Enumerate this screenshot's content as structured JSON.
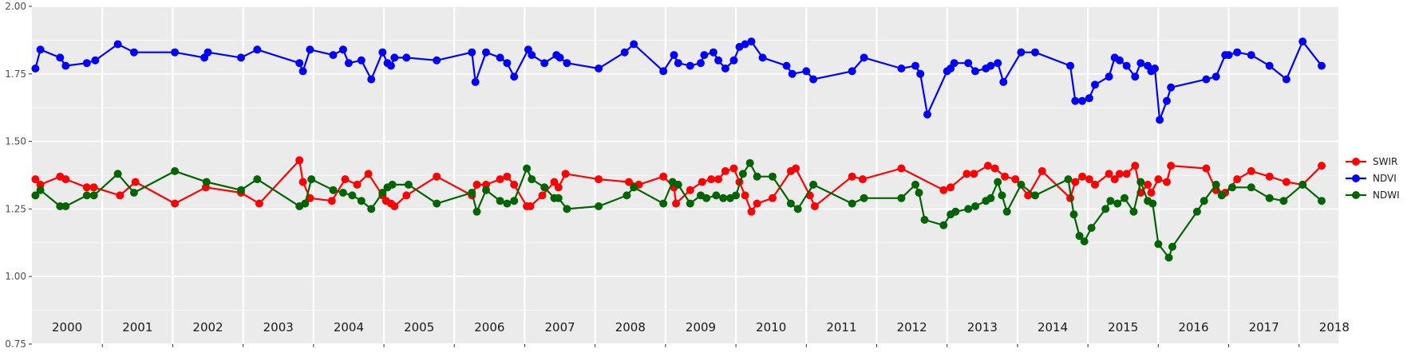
{
  "chart_data": {
    "type": "line",
    "title": "",
    "xlabel": "",
    "ylabel": "",
    "xlim": [
      1999.6,
      2018.8
    ],
    "ylim": [
      0.75,
      2.0
    ],
    "y_ticks": [
      "0.75",
      "1.00",
      "1.25",
      "1.50",
      "1.75",
      "2.00"
    ],
    "year_labels": [
      "2000",
      "2001",
      "2002",
      "2003",
      "2004",
      "2005",
      "2006",
      "2007",
      "2008",
      "2009",
      "2010",
      "2011",
      "2012",
      "2013",
      "2014",
      "2015",
      "2016",
      "2017",
      "2018"
    ],
    "grid": true,
    "legend_position": "right",
    "series": [
      {
        "name": "SWIR",
        "color": "#ff0000",
        "points": [
          [
            2000.05,
            1.36
          ],
          [
            2000.12,
            1.34
          ],
          [
            2000.4,
            1.37
          ],
          [
            2000.48,
            1.36
          ],
          [
            2000.78,
            1.33
          ],
          [
            2000.88,
            1.33
          ],
          [
            2001.25,
            1.3
          ],
          [
            2001.47,
            1.35
          ],
          [
            2002.03,
            1.27
          ],
          [
            2002.47,
            1.33
          ],
          [
            2002.97,
            1.31
          ],
          [
            2003.23,
            1.27
          ],
          [
            2003.8,
            1.43
          ],
          [
            2003.85,
            1.35
          ],
          [
            2003.95,
            1.29
          ],
          [
            2004.26,
            1.28
          ],
          [
            2004.45,
            1.36
          ],
          [
            2004.62,
            1.34
          ],
          [
            2004.78,
            1.38
          ],
          [
            2004.98,
            1.3
          ],
          [
            2005.03,
            1.28
          ],
          [
            2005.1,
            1.27
          ],
          [
            2005.15,
            1.26
          ],
          [
            2005.32,
            1.3
          ],
          [
            2005.75,
            1.37
          ],
          [
            2006.25,
            1.3
          ],
          [
            2006.32,
            1.34
          ],
          [
            2006.45,
            1.34
          ],
          [
            2006.65,
            1.36
          ],
          [
            2006.75,
            1.37
          ],
          [
            2006.85,
            1.34
          ],
          [
            2007.03,
            1.26
          ],
          [
            2007.08,
            1.26
          ],
          [
            2007.25,
            1.3
          ],
          [
            2007.42,
            1.35
          ],
          [
            2007.48,
            1.33
          ],
          [
            2007.58,
            1.38
          ],
          [
            2008.05,
            1.36
          ],
          [
            2008.48,
            1.35
          ],
          [
            2008.62,
            1.34
          ],
          [
            2008.97,
            1.37
          ],
          [
            2009.12,
            1.33
          ],
          [
            2009.15,
            1.27
          ],
          [
            2009.35,
            1.32
          ],
          [
            2009.52,
            1.35
          ],
          [
            2009.65,
            1.36
          ],
          [
            2009.75,
            1.36
          ],
          [
            2009.85,
            1.39
          ],
          [
            2009.97,
            1.4
          ],
          [
            2010.05,
            1.35
          ],
          [
            2010.13,
            1.3
          ],
          [
            2010.22,
            1.24
          ],
          [
            2010.3,
            1.27
          ],
          [
            2010.52,
            1.29
          ],
          [
            2010.78,
            1.39
          ],
          [
            2010.85,
            1.4
          ],
          [
            2011.05,
            1.3
          ],
          [
            2011.12,
            1.26
          ],
          [
            2011.65,
            1.37
          ],
          [
            2011.8,
            1.36
          ],
          [
            2012.35,
            1.4
          ],
          [
            2012.95,
            1.32
          ],
          [
            2013.05,
            1.33
          ],
          [
            2013.28,
            1.38
          ],
          [
            2013.38,
            1.38
          ],
          [
            2013.58,
            1.41
          ],
          [
            2013.68,
            1.4
          ],
          [
            2013.82,
            1.37
          ],
          [
            2013.97,
            1.36
          ],
          [
            2014.15,
            1.3
          ],
          [
            2014.35,
            1.39
          ],
          [
            2014.75,
            1.29
          ],
          [
            2014.82,
            1.35
          ],
          [
            2014.92,
            1.37
          ],
          [
            2015.02,
            1.36
          ],
          [
            2015.1,
            1.34
          ],
          [
            2015.3,
            1.38
          ],
          [
            2015.38,
            1.36
          ],
          [
            2015.45,
            1.38
          ],
          [
            2015.55,
            1.38
          ],
          [
            2015.67,
            1.41
          ],
          [
            2015.75,
            1.31
          ],
          [
            2015.85,
            1.34
          ],
          [
            2015.9,
            1.31
          ],
          [
            2016.0,
            1.36
          ],
          [
            2016.12,
            1.35
          ],
          [
            2016.18,
            1.41
          ],
          [
            2016.68,
            1.4
          ],
          [
            2016.82,
            1.32
          ],
          [
            2016.95,
            1.31
          ],
          [
            2017.12,
            1.36
          ],
          [
            2017.32,
            1.39
          ],
          [
            2017.58,
            1.37
          ],
          [
            2017.82,
            1.35
          ],
          [
            2018.05,
            1.34
          ],
          [
            2018.32,
            1.41
          ]
        ]
      },
      {
        "name": "NDVI",
        "color": "#0000ff",
        "points": [
          [
            2000.05,
            1.77
          ],
          [
            2000.12,
            1.84
          ],
          [
            2000.4,
            1.81
          ],
          [
            2000.48,
            1.78
          ],
          [
            2000.78,
            1.79
          ],
          [
            2000.9,
            1.8
          ],
          [
            2001.22,
            1.86
          ],
          [
            2001.45,
            1.83
          ],
          [
            2002.03,
            1.83
          ],
          [
            2002.45,
            1.81
          ],
          [
            2002.5,
            1.83
          ],
          [
            2002.97,
            1.81
          ],
          [
            2003.2,
            1.84
          ],
          [
            2003.8,
            1.79
          ],
          [
            2003.85,
            1.76
          ],
          [
            2003.95,
            1.84
          ],
          [
            2004.28,
            1.82
          ],
          [
            2004.42,
            1.84
          ],
          [
            2004.5,
            1.79
          ],
          [
            2004.68,
            1.8
          ],
          [
            2004.82,
            1.73
          ],
          [
            2004.98,
            1.83
          ],
          [
            2005.05,
            1.79
          ],
          [
            2005.1,
            1.78
          ],
          [
            2005.15,
            1.81
          ],
          [
            2005.32,
            1.81
          ],
          [
            2005.75,
            1.8
          ],
          [
            2006.25,
            1.83
          ],
          [
            2006.3,
            1.72
          ],
          [
            2006.45,
            1.83
          ],
          [
            2006.65,
            1.81
          ],
          [
            2006.75,
            1.79
          ],
          [
            2006.85,
            1.74
          ],
          [
            2007.05,
            1.84
          ],
          [
            2007.1,
            1.82
          ],
          [
            2007.28,
            1.79
          ],
          [
            2007.45,
            1.82
          ],
          [
            2007.5,
            1.81
          ],
          [
            2007.6,
            1.79
          ],
          [
            2008.05,
            1.77
          ],
          [
            2008.42,
            1.83
          ],
          [
            2008.55,
            1.86
          ],
          [
            2008.97,
            1.76
          ],
          [
            2009.12,
            1.82
          ],
          [
            2009.18,
            1.79
          ],
          [
            2009.35,
            1.78
          ],
          [
            2009.5,
            1.79
          ],
          [
            2009.55,
            1.82
          ],
          [
            2009.68,
            1.83
          ],
          [
            2009.75,
            1.8
          ],
          [
            2009.85,
            1.77
          ],
          [
            2009.97,
            1.8
          ],
          [
            2010.05,
            1.85
          ],
          [
            2010.13,
            1.86
          ],
          [
            2010.22,
            1.87
          ],
          [
            2010.38,
            1.81
          ],
          [
            2010.72,
            1.78
          ],
          [
            2010.8,
            1.75
          ],
          [
            2011.0,
            1.76
          ],
          [
            2011.1,
            1.73
          ],
          [
            2011.65,
            1.76
          ],
          [
            2011.82,
            1.81
          ],
          [
            2012.35,
            1.77
          ],
          [
            2012.55,
            1.78
          ],
          [
            2012.62,
            1.75
          ],
          [
            2012.72,
            1.6
          ],
          [
            2013.0,
            1.76
          ],
          [
            2013.05,
            1.77
          ],
          [
            2013.1,
            1.79
          ],
          [
            2013.3,
            1.79
          ],
          [
            2013.4,
            1.76
          ],
          [
            2013.55,
            1.77
          ],
          [
            2013.62,
            1.78
          ],
          [
            2013.72,
            1.79
          ],
          [
            2013.8,
            1.72
          ],
          [
            2014.05,
            1.83
          ],
          [
            2014.25,
            1.83
          ],
          [
            2014.75,
            1.78
          ],
          [
            2014.82,
            1.65
          ],
          [
            2014.92,
            1.65
          ],
          [
            2015.02,
            1.66
          ],
          [
            2015.1,
            1.71
          ],
          [
            2015.3,
            1.74
          ],
          [
            2015.38,
            1.81
          ],
          [
            2015.45,
            1.8
          ],
          [
            2015.55,
            1.78
          ],
          [
            2015.67,
            1.74
          ],
          [
            2015.75,
            1.79
          ],
          [
            2015.85,
            1.78
          ],
          [
            2015.9,
            1.76
          ],
          [
            2015.95,
            1.77
          ],
          [
            2016.02,
            1.58
          ],
          [
            2016.12,
            1.65
          ],
          [
            2016.18,
            1.7
          ],
          [
            2016.68,
            1.73
          ],
          [
            2016.82,
            1.74
          ],
          [
            2016.95,
            1.82
          ],
          [
            2017.0,
            1.82
          ],
          [
            2017.12,
            1.83
          ],
          [
            2017.32,
            1.82
          ],
          [
            2017.58,
            1.78
          ],
          [
            2017.82,
            1.73
          ],
          [
            2018.05,
            1.87
          ],
          [
            2018.32,
            1.78
          ]
        ]
      },
      {
        "name": "NDWI",
        "color": "#006400",
        "points": [
          [
            2000.05,
            1.3
          ],
          [
            2000.12,
            1.32
          ],
          [
            2000.4,
            1.26
          ],
          [
            2000.48,
            1.26
          ],
          [
            2000.78,
            1.3
          ],
          [
            2000.88,
            1.3
          ],
          [
            2001.22,
            1.38
          ],
          [
            2001.45,
            1.31
          ],
          [
            2002.03,
            1.39
          ],
          [
            2002.48,
            1.35
          ],
          [
            2002.97,
            1.32
          ],
          [
            2003.2,
            1.36
          ],
          [
            2003.8,
            1.26
          ],
          [
            2003.88,
            1.27
          ],
          [
            2003.97,
            1.36
          ],
          [
            2004.28,
            1.32
          ],
          [
            2004.42,
            1.31
          ],
          [
            2004.55,
            1.3
          ],
          [
            2004.68,
            1.28
          ],
          [
            2004.82,
            1.25
          ],
          [
            2004.98,
            1.31
          ],
          [
            2005.05,
            1.33
          ],
          [
            2005.12,
            1.34
          ],
          [
            2005.35,
            1.34
          ],
          [
            2005.75,
            1.27
          ],
          [
            2006.25,
            1.31
          ],
          [
            2006.32,
            1.24
          ],
          [
            2006.45,
            1.32
          ],
          [
            2006.65,
            1.28
          ],
          [
            2006.75,
            1.27
          ],
          [
            2006.85,
            1.28
          ],
          [
            2007.03,
            1.4
          ],
          [
            2007.1,
            1.36
          ],
          [
            2007.28,
            1.33
          ],
          [
            2007.42,
            1.29
          ],
          [
            2007.48,
            1.29
          ],
          [
            2007.6,
            1.25
          ],
          [
            2008.05,
            1.26
          ],
          [
            2008.45,
            1.3
          ],
          [
            2008.55,
            1.33
          ],
          [
            2008.97,
            1.27
          ],
          [
            2009.1,
            1.35
          ],
          [
            2009.18,
            1.34
          ],
          [
            2009.35,
            1.27
          ],
          [
            2009.5,
            1.3
          ],
          [
            2009.58,
            1.29
          ],
          [
            2009.72,
            1.3
          ],
          [
            2009.82,
            1.29
          ],
          [
            2009.92,
            1.29
          ],
          [
            2010.0,
            1.3
          ],
          [
            2010.1,
            1.38
          ],
          [
            2010.2,
            1.42
          ],
          [
            2010.3,
            1.37
          ],
          [
            2010.52,
            1.37
          ],
          [
            2010.78,
            1.27
          ],
          [
            2010.88,
            1.25
          ],
          [
            2011.1,
            1.34
          ],
          [
            2011.65,
            1.27
          ],
          [
            2011.82,
            1.29
          ],
          [
            2012.35,
            1.29
          ],
          [
            2012.55,
            1.34
          ],
          [
            2012.6,
            1.31
          ],
          [
            2012.68,
            1.21
          ],
          [
            2012.95,
            1.19
          ],
          [
            2013.05,
            1.23
          ],
          [
            2013.12,
            1.24
          ],
          [
            2013.3,
            1.25
          ],
          [
            2013.4,
            1.26
          ],
          [
            2013.55,
            1.28
          ],
          [
            2013.62,
            1.29
          ],
          [
            2013.72,
            1.35
          ],
          [
            2013.78,
            1.3
          ],
          [
            2013.85,
            1.24
          ],
          [
            2014.05,
            1.34
          ],
          [
            2014.25,
            1.3
          ],
          [
            2014.72,
            1.36
          ],
          [
            2014.8,
            1.23
          ],
          [
            2014.88,
            1.15
          ],
          [
            2014.95,
            1.13
          ],
          [
            2015.05,
            1.18
          ],
          [
            2015.25,
            1.25
          ],
          [
            2015.32,
            1.28
          ],
          [
            2015.42,
            1.27
          ],
          [
            2015.52,
            1.29
          ],
          [
            2015.65,
            1.24
          ],
          [
            2015.75,
            1.35
          ],
          [
            2015.85,
            1.28
          ],
          [
            2015.92,
            1.27
          ],
          [
            2016.0,
            1.12
          ],
          [
            2016.15,
            1.07
          ],
          [
            2016.2,
            1.11
          ],
          [
            2016.55,
            1.24
          ],
          [
            2016.65,
            1.28
          ],
          [
            2016.82,
            1.34
          ],
          [
            2016.9,
            1.3
          ],
          [
            2017.05,
            1.33
          ],
          [
            2017.32,
            1.33
          ],
          [
            2017.58,
            1.29
          ],
          [
            2017.78,
            1.28
          ],
          [
            2018.05,
            1.34
          ],
          [
            2018.32,
            1.28
          ]
        ]
      }
    ]
  }
}
